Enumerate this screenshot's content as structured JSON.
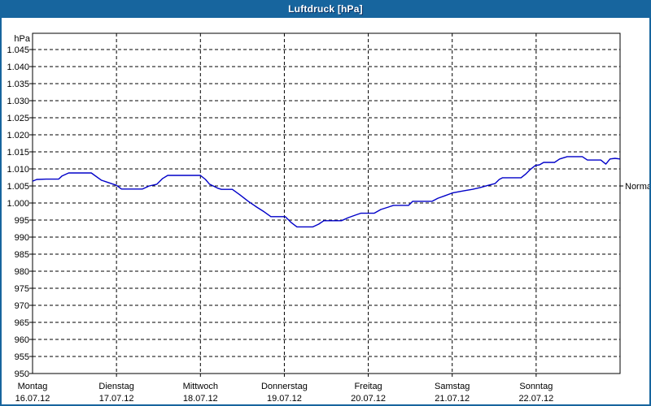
{
  "window": {
    "title": "Luftdruck [hPa]"
  },
  "colors": {
    "titlebar": "#17659E",
    "window_border": "#17659E",
    "plot_background": "#FFFFFF",
    "grid": "#000000",
    "axis": "#000000",
    "series_line": "#0000C8",
    "label_text": "#000000"
  },
  "chart_data": {
    "type": "line",
    "title": "Luftdruck [hPa]",
    "ylabel": "hPa",
    "xlabel": "",
    "grid": "dashed",
    "legend_position": "none",
    "y_axis": {
      "unit": "hPa",
      "ylim": [
        950,
        1047.5
      ],
      "tick_step": 5,
      "tick_values": [
        1045,
        1040,
        1035,
        1030,
        1025,
        1020,
        1015,
        1010,
        1005,
        1000,
        995,
        990,
        985,
        980,
        975,
        970,
        965,
        960,
        955,
        950
      ],
      "tick_labels": [
        "1.045",
        "1.040",
        "1.035",
        "1.030",
        "1.025",
        "1.020",
        "1.015",
        "1.010",
        "1.005",
        "1.000",
        "995",
        "990",
        "985",
        "980",
        "975",
        "970",
        "965",
        "960",
        "955",
        "950"
      ]
    },
    "x_axis": {
      "range_days": [
        0,
        7
      ],
      "day_labels": [
        {
          "weekday": "Montag",
          "date": "16.07.12"
        },
        {
          "weekday": "Dienstag",
          "date": "17.07.12"
        },
        {
          "weekday": "Mittwoch",
          "date": "18.07.12"
        },
        {
          "weekday": "Donnerstag",
          "date": "19.07.12"
        },
        {
          "weekday": "Freitag",
          "date": "20.07.12"
        },
        {
          "weekday": "Samstag",
          "date": "21.07.12"
        },
        {
          "weekday": "Sonntag",
          "date": "22.07.12"
        }
      ]
    },
    "annotations": {
      "normal": {
        "label": "Normal",
        "value": 1005
      }
    },
    "series": [
      {
        "name": "Luftdruck",
        "points": [
          [
            0.0,
            1006.4
          ],
          [
            0.05,
            1006.9
          ],
          [
            0.16,
            1007.0
          ],
          [
            0.31,
            1007.0
          ],
          [
            0.35,
            1007.9
          ],
          [
            0.43,
            1008.8
          ],
          [
            0.7,
            1008.8
          ],
          [
            0.82,
            1006.7
          ],
          [
            1.0,
            1005.2
          ],
          [
            1.06,
            1004.1
          ],
          [
            1.31,
            1004.1
          ],
          [
            1.39,
            1005.0
          ],
          [
            1.48,
            1005.5
          ],
          [
            1.55,
            1007.2
          ],
          [
            1.61,
            1008.1
          ],
          [
            2.0,
            1008.1
          ],
          [
            2.06,
            1006.9
          ],
          [
            2.11,
            1005.5
          ],
          [
            2.21,
            1004.3
          ],
          [
            2.25,
            1004.0
          ],
          [
            2.38,
            1004.0
          ],
          [
            2.47,
            1002.4
          ],
          [
            2.57,
            1000.5
          ],
          [
            2.67,
            998.8
          ],
          [
            2.76,
            997.4
          ],
          [
            2.84,
            996.0
          ],
          [
            3.01,
            996.0
          ],
          [
            3.08,
            994.3
          ],
          [
            3.15,
            993.0
          ],
          [
            3.34,
            993.0
          ],
          [
            3.41,
            993.8
          ],
          [
            3.47,
            994.8
          ],
          [
            3.68,
            994.8
          ],
          [
            3.76,
            995.7
          ],
          [
            3.84,
            996.4
          ],
          [
            3.91,
            997.0
          ],
          [
            4.07,
            997.0
          ],
          [
            4.15,
            998.1
          ],
          [
            4.24,
            998.8
          ],
          [
            4.3,
            999.3
          ],
          [
            4.48,
            999.3
          ],
          [
            4.53,
            1000.5
          ],
          [
            4.76,
            1000.5
          ],
          [
            4.83,
            1001.4
          ],
          [
            4.91,
            1002.1
          ],
          [
            5.01,
            1003.0
          ],
          [
            5.14,
            1003.6
          ],
          [
            5.24,
            1004.0
          ],
          [
            5.33,
            1004.5
          ],
          [
            5.43,
            1005.2
          ],
          [
            5.51,
            1005.7
          ],
          [
            5.56,
            1006.9
          ],
          [
            5.6,
            1007.4
          ],
          [
            5.82,
            1007.4
          ],
          [
            5.88,
            1008.6
          ],
          [
            5.93,
            1009.8
          ],
          [
            5.99,
            1011.0
          ],
          [
            6.04,
            1011.2
          ],
          [
            6.09,
            1011.9
          ],
          [
            6.22,
            1011.9
          ],
          [
            6.28,
            1012.9
          ],
          [
            6.37,
            1013.6
          ],
          [
            6.55,
            1013.6
          ],
          [
            6.61,
            1012.6
          ],
          [
            6.77,
            1012.6
          ],
          [
            6.83,
            1011.4
          ],
          [
            6.88,
            1012.9
          ],
          [
            6.94,
            1013.1
          ],
          [
            7.0,
            1012.9
          ]
        ]
      }
    ]
  }
}
